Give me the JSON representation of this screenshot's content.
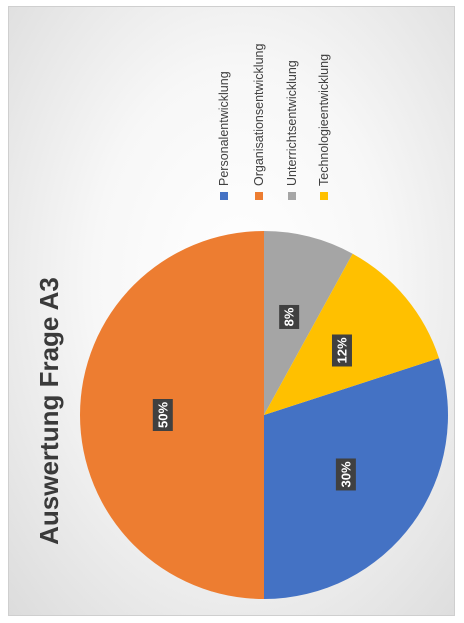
{
  "chart_data": {
    "type": "pie",
    "title": "Auswertung Frage A3",
    "categories": [
      "Personalentwicklung",
      "Organisationsentwicklung",
      "Unterrichtsentwicklung",
      "Technologieentwicklung"
    ],
    "values": [
      30,
      50,
      8,
      12
    ],
    "data_labels": [
      "30%",
      "50%",
      "8%",
      "12%"
    ],
    "colors": [
      "#4472C4",
      "#ED7D31",
      "#A5A5A5",
      "#FFC000"
    ],
    "legend_position": "top",
    "orientation": "rotated 90° counter-clockwise"
  }
}
